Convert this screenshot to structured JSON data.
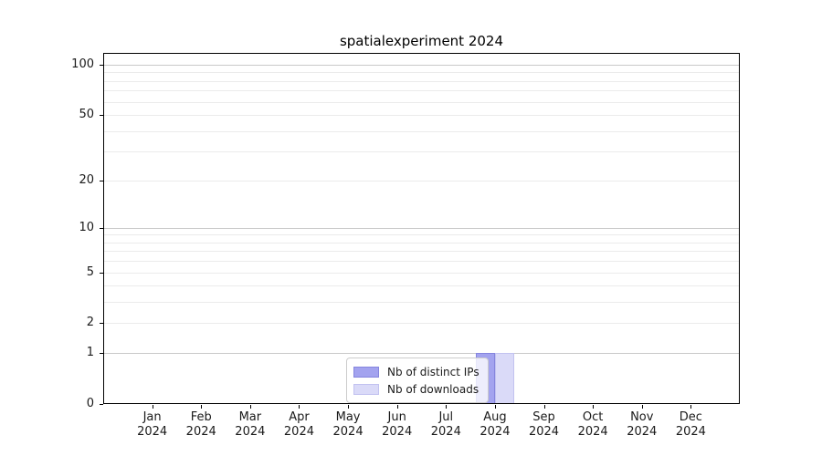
{
  "title": "spatialexperiment 2024",
  "chart_data": {
    "type": "bar",
    "title": "spatialexperiment 2024",
    "categories": [
      "Jan 2024",
      "Feb 2024",
      "Mar 2024",
      "Apr 2024",
      "May 2024",
      "Jun 2024",
      "Jul 2024",
      "Aug 2024",
      "Sep 2024",
      "Oct 2024",
      "Nov 2024",
      "Dec 2024"
    ],
    "x_tick_months": [
      "Jan",
      "Feb",
      "Mar",
      "Apr",
      "May",
      "Jun",
      "Jul",
      "Aug",
      "Sep",
      "Oct",
      "Nov",
      "Dec"
    ],
    "x_tick_year": "2024",
    "series": [
      {
        "name": "Nb of distinct IPs",
        "values": [
          0,
          0,
          0,
          0,
          0,
          0,
          0,
          1,
          0,
          0,
          0,
          0
        ],
        "fill": "#a3a3ef",
        "edge": "#8585de"
      },
      {
        "name": "Nb of downloads",
        "values": [
          0,
          0,
          0,
          0,
          0,
          0,
          0,
          1,
          0,
          0,
          0,
          0
        ],
        "fill": "#dadaf8",
        "edge": "#c2c2f0"
      }
    ],
    "yscale": "log1p",
    "ylim": [
      0,
      118
    ],
    "yticks": [
      0,
      1,
      2,
      5,
      10,
      20,
      50,
      100
    ],
    "grid_minor": [
      2,
      3,
      4,
      5,
      6,
      7,
      8,
      9,
      20,
      30,
      40,
      50,
      60,
      70,
      80,
      90
    ],
    "grid_major": [
      1,
      10,
      100
    ],
    "grid_on": true,
    "legend_position": "bottom-center-inside",
    "colors": {
      "grid_minor": "#ebebeb",
      "grid_major": "#c9c9c9",
      "spine": "#000000",
      "text": "#1a1a1a",
      "background": "#ffffff"
    }
  }
}
